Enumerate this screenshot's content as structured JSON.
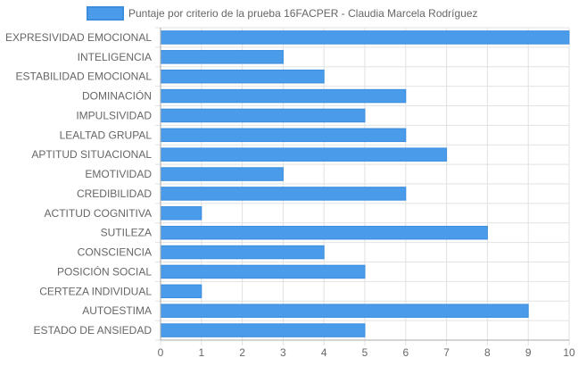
{
  "chart_data": {
    "type": "bar",
    "orientation": "horizontal",
    "categories": [
      "EXPRESIVIDAD EMOCIONAL",
      "INTELIGENCIA",
      "ESTABILIDAD EMOCIONAL",
      "DOMINACIÓN",
      "IMPULSIVIDAD",
      "LEALTAD GRUPAL",
      "APTITUD SITUACIONAL",
      "EMOTIVIDAD",
      "CREDIBILIDAD",
      "ACTITUD COGNITIVA",
      "SUTILEZA",
      "CONSCIENCIA",
      "POSICIÓN SOCIAL",
      "CERTEZA INDIVIDUAL",
      "AUTOESTIMA",
      "ESTADO DE ANSIEDAD"
    ],
    "series": [
      {
        "name": "Puntaje por criterio de la prueba 16FACPER - Claudia Marcela Rodríguez",
        "values": [
          10,
          3,
          4,
          6,
          5,
          6,
          7,
          3,
          6,
          1,
          8,
          4,
          5,
          1,
          9,
          5
        ]
      }
    ],
    "xlim": [
      0,
      10
    ],
    "xticks": [
      "0",
      "1",
      "2",
      "3",
      "4",
      "5",
      "6",
      "7",
      "8",
      "9",
      "10"
    ],
    "grid": true,
    "legend": "top",
    "colors": {
      "bar_fill": "#4a9be9",
      "bar_stroke": "#3a8ddf",
      "grid": "#e2e2e2",
      "axis": "#aaaaaa",
      "text": "#666666"
    }
  }
}
